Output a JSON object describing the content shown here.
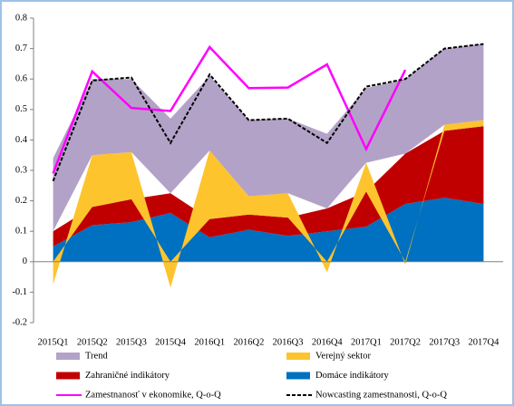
{
  "chart_data": {
    "type": "stacked_area_line",
    "categories": [
      "2015Q1",
      "2015Q2",
      "2015Q3",
      "2015Q4",
      "2016Q1",
      "2016Q2",
      "2016Q3",
      "2016Q4",
      "2017Q1",
      "2017Q2",
      "2017Q3",
      "2017Q4"
    ],
    "series": [
      {
        "name": "Domáce indikátory",
        "kind": "area",
        "color": "#0070c0",
        "values": [
          0.05,
          0.12,
          0.13,
          0.16,
          0.08,
          0.105,
          0.085,
          0.1,
          0.115,
          0.19,
          0.21,
          0.19
        ]
      },
      {
        "name": "Zahraničné indikátory",
        "kind": "area",
        "color": "#c00000",
        "values": [
          0.05,
          0.06,
          0.075,
          0.065,
          0.06,
          0.05,
          0.06,
          0.075,
          0.115,
          0.165,
          0.22,
          0.255
        ]
      },
      {
        "name": "Verejný sektor",
        "kind": "area",
        "color": "#fdc42e",
        "values": [
          -0.075,
          0.17,
          0.155,
          -0.085,
          0.225,
          0.06,
          0.08,
          -0.035,
          0.095,
          -0.01,
          0.02,
          0.02
        ]
      },
      {
        "name": "Trend",
        "kind": "area",
        "color": "#b3a2c7",
        "values": [
          0.24,
          0.25,
          0.24,
          0.245,
          0.245,
          0.25,
          0.245,
          0.245,
          0.245,
          0.245,
          0.25,
          0.25
        ]
      },
      {
        "name": "Zamestnanosť v ekonomike, Q-o-Q",
        "kind": "line",
        "color": "#ff00ff",
        "values": [
          0.29,
          0.625,
          0.505,
          0.495,
          0.705,
          0.57,
          0.572,
          0.648,
          0.37,
          0.63,
          null,
          null
        ]
      },
      {
        "name": "Nowcasting zamestnanosti, Q-o-Q",
        "kind": "dashed",
        "color": "#000000",
        "values": [
          0.265,
          0.595,
          0.605,
          0.39,
          0.615,
          0.465,
          0.47,
          0.39,
          0.575,
          0.6,
          0.7,
          0.715
        ]
      }
    ],
    "legend_order": [
      3,
      2,
      1,
      0,
      4,
      5
    ],
    "ylim": [
      -0.2,
      0.8
    ],
    "yticks": [
      -0.2,
      -0.1,
      0,
      0.1,
      0.2,
      0.3,
      0.4,
      0.5,
      0.6,
      0.7,
      0.8
    ]
  }
}
